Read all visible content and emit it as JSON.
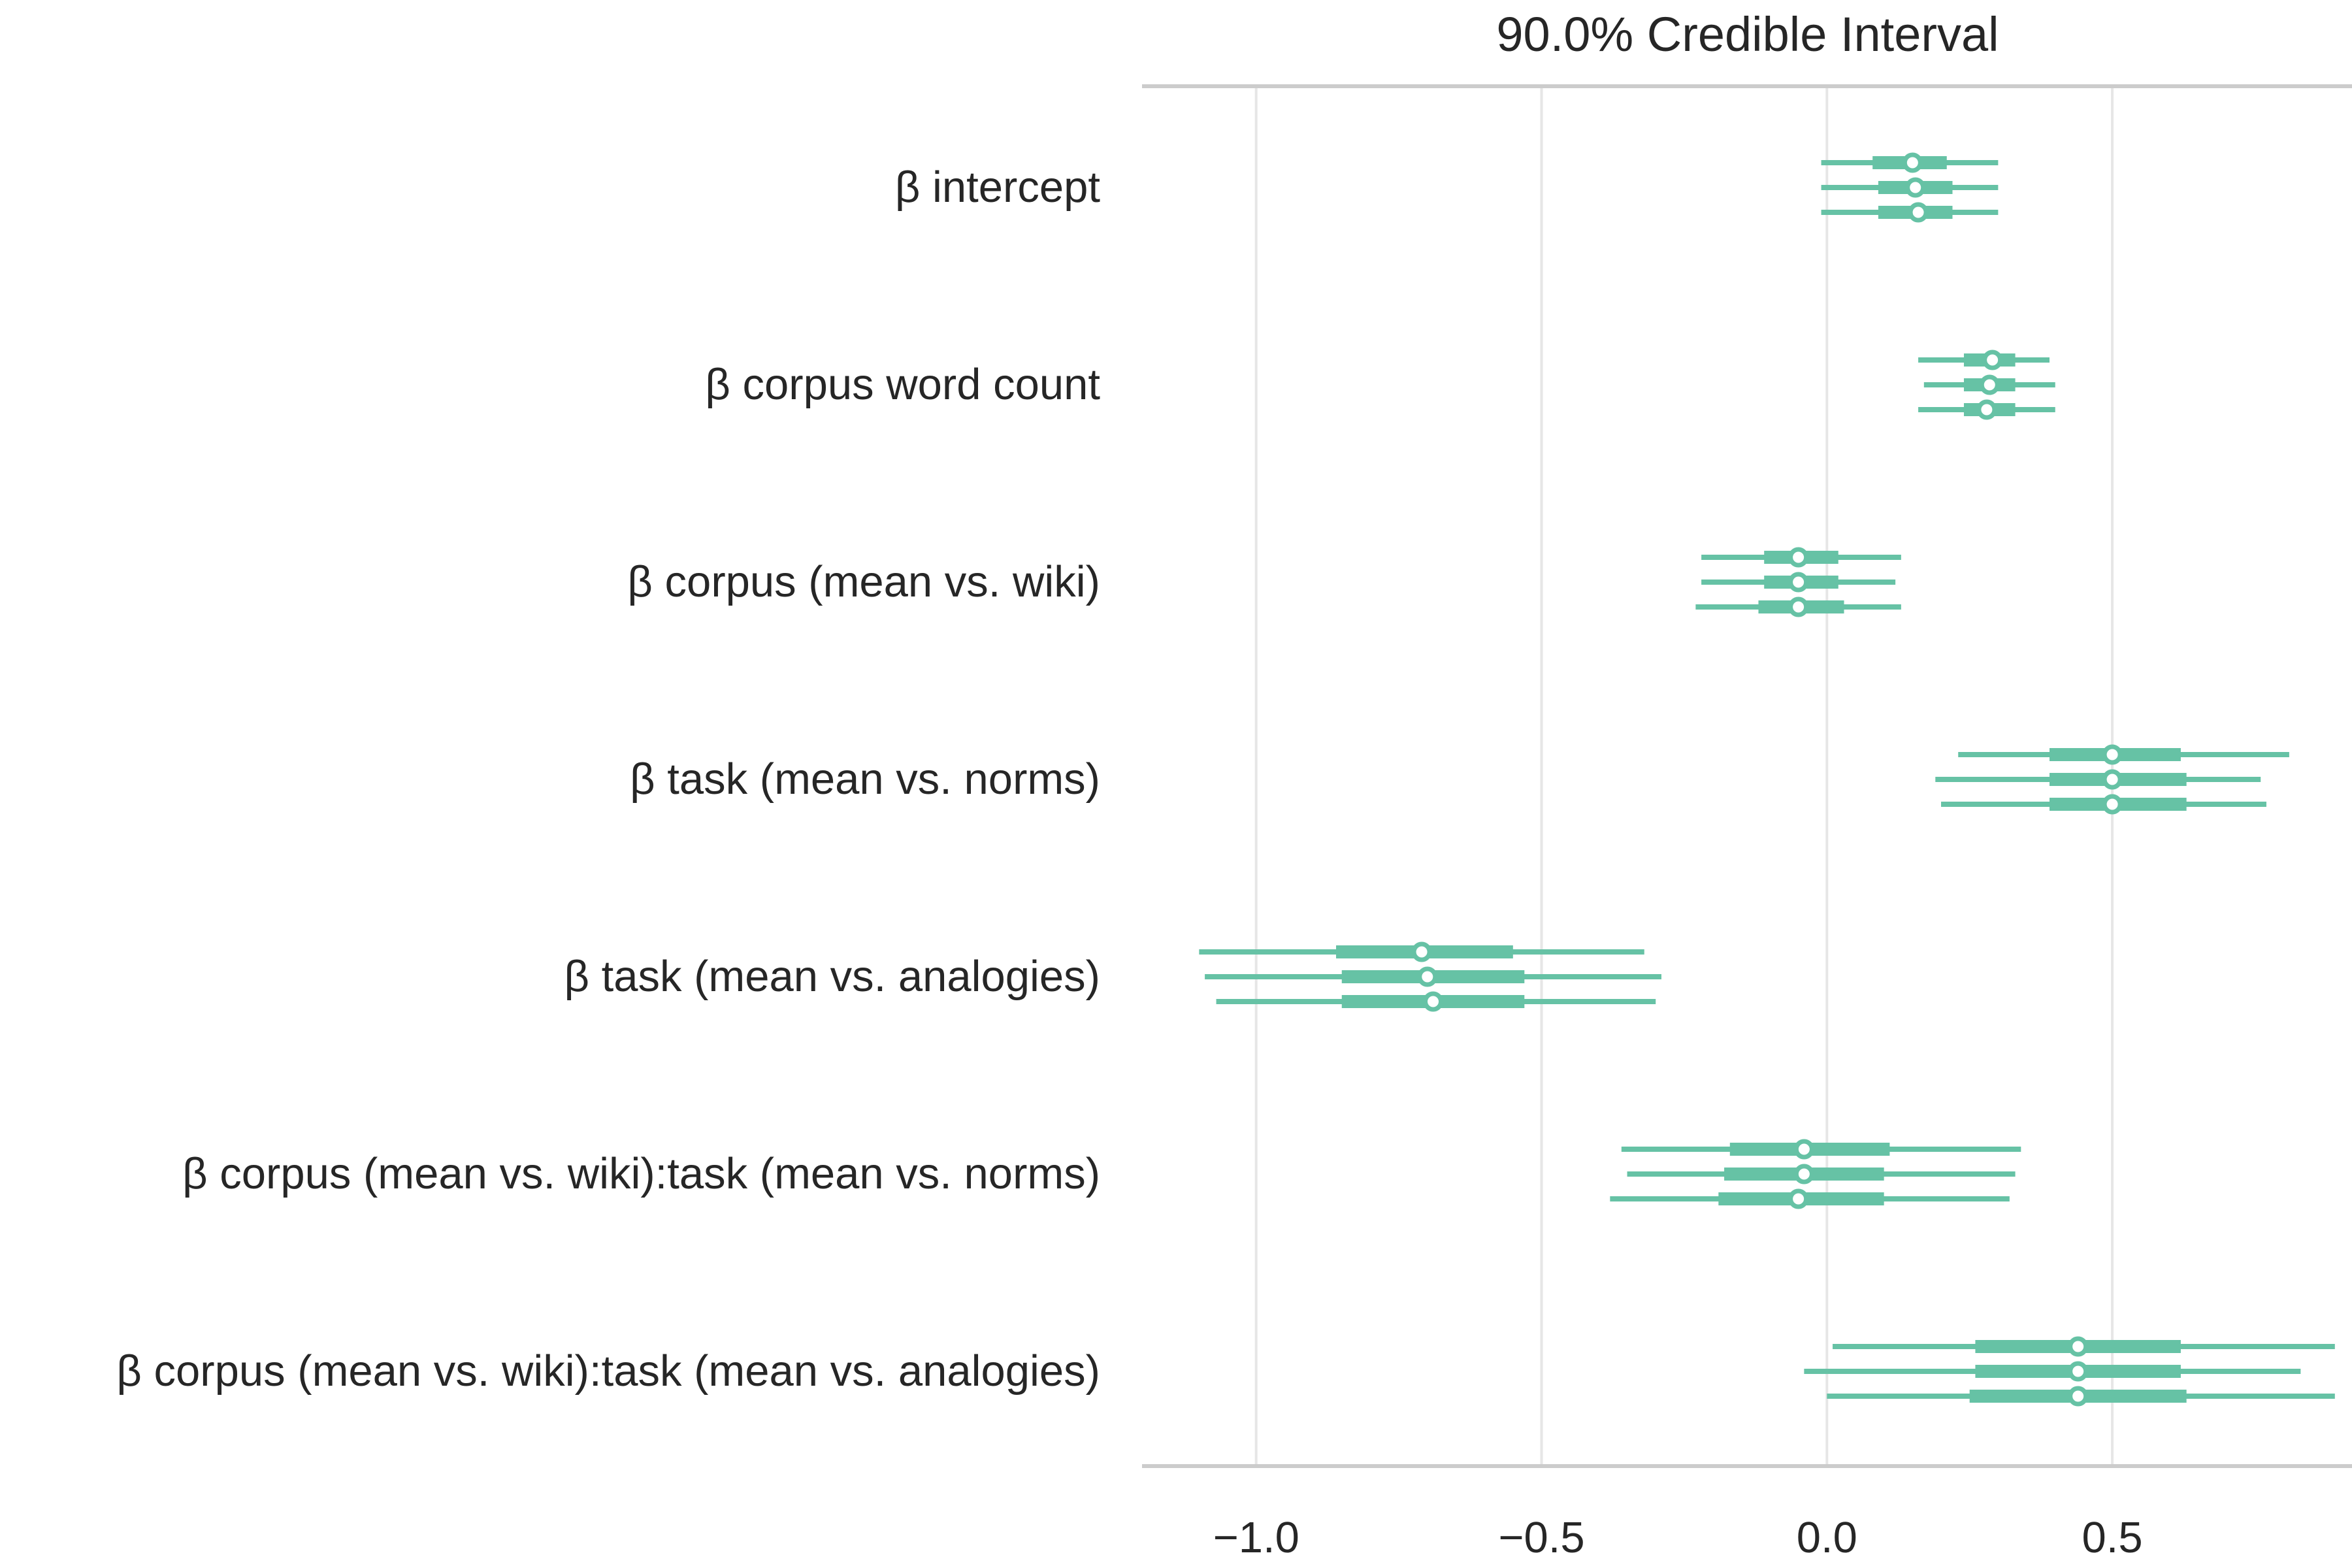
{
  "chart_data": {
    "type": "forest",
    "title": "90.0% Credible Interval",
    "xlim": [
      -1.2,
      0.92
    ],
    "xticks": [
      -1.0,
      -0.5,
      0.0,
      0.5
    ],
    "xtick_labels": [
      "−1.0",
      "−0.5",
      "0.0",
      "0.5"
    ],
    "grid": true,
    "color": "#66c2a5",
    "parameters": [
      {
        "label": "β intercept",
        "chains": [
          {
            "hdi": [
              -0.01,
              0.3
            ],
            "iqr": [
              0.08,
              0.21
            ],
            "median": 0.15
          },
          {
            "hdi": [
              -0.01,
              0.3
            ],
            "iqr": [
              0.09,
              0.22
            ],
            "median": 0.155
          },
          {
            "hdi": [
              -0.01,
              0.3
            ],
            "iqr": [
              0.09,
              0.22
            ],
            "median": 0.16
          }
        ]
      },
      {
        "label": "β corpus word count",
        "chains": [
          {
            "hdi": [
              0.16,
              0.39
            ],
            "iqr": [
              0.24,
              0.33
            ],
            "median": 0.29
          },
          {
            "hdi": [
              0.17,
              0.4
            ],
            "iqr": [
              0.24,
              0.33
            ],
            "median": 0.285
          },
          {
            "hdi": [
              0.16,
              0.4
            ],
            "iqr": [
              0.24,
              0.33
            ],
            "median": 0.28
          }
        ]
      },
      {
        "label": "β corpus (mean vs. wiki)",
        "chains": [
          {
            "hdi": [
              -0.22,
              0.13
            ],
            "iqr": [
              -0.11,
              0.02
            ],
            "median": -0.05
          },
          {
            "hdi": [
              -0.22,
              0.12
            ],
            "iqr": [
              -0.11,
              0.02
            ],
            "median": -0.05
          },
          {
            "hdi": [
              -0.23,
              0.13
            ],
            "iqr": [
              -0.12,
              0.03
            ],
            "median": -0.05
          }
        ]
      },
      {
        "label": "β task (mean vs. norms)",
        "chains": [
          {
            "hdi": [
              0.23,
              0.81
            ],
            "iqr": [
              0.39,
              0.62
            ],
            "median": 0.5
          },
          {
            "hdi": [
              0.19,
              0.76
            ],
            "iqr": [
              0.39,
              0.63
            ],
            "median": 0.5
          },
          {
            "hdi": [
              0.2,
              0.77
            ],
            "iqr": [
              0.39,
              0.63
            ],
            "median": 0.5
          }
        ]
      },
      {
        "label": "β task (mean vs. analogies)",
        "chains": [
          {
            "hdi": [
              -1.1,
              -0.32
            ],
            "iqr": [
              -0.86,
              -0.55
            ],
            "median": -0.71
          },
          {
            "hdi": [
              -1.09,
              -0.29
            ],
            "iqr": [
              -0.85,
              -0.53
            ],
            "median": -0.7
          },
          {
            "hdi": [
              -1.07,
              -0.3
            ],
            "iqr": [
              -0.85,
              -0.53
            ],
            "median": -0.69
          }
        ]
      },
      {
        "label": "β corpus (mean vs. wiki):task (mean vs. norms)",
        "chains": [
          {
            "hdi": [
              -0.36,
              0.34
            ],
            "iqr": [
              -0.17,
              0.11
            ],
            "median": -0.04
          },
          {
            "hdi": [
              -0.35,
              0.33
            ],
            "iqr": [
              -0.18,
              0.1
            ],
            "median": -0.04
          },
          {
            "hdi": [
              -0.38,
              0.32
            ],
            "iqr": [
              -0.19,
              0.1
            ],
            "median": -0.05
          }
        ]
      },
      {
        "label": "β corpus (mean vs. wiki):task (mean vs. analogies)",
        "chains": [
          {
            "hdi": [
              0.01,
              0.89
            ],
            "iqr": [
              0.26,
              0.62
            ],
            "median": 0.44
          },
          {
            "hdi": [
              -0.04,
              0.83
            ],
            "iqr": [
              0.26,
              0.62
            ],
            "median": 0.44
          },
          {
            "hdi": [
              0.0,
              0.89
            ],
            "iqr": [
              0.25,
              0.63
            ],
            "median": 0.44
          }
        ]
      }
    ]
  }
}
